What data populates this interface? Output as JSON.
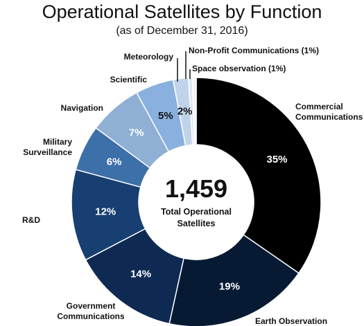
{
  "chart_data": {
    "type": "pie",
    "title": "Operational Satellites by Function",
    "subtitle": "(as of December 31, 2016)",
    "center_value": "1,459",
    "center_text_line1": "Total Operational",
    "center_text_line2": "Satellites",
    "categories": [
      "Commercial Communications",
      "Earth Observation",
      "Government Communications",
      "R&D",
      "Military Surveillance",
      "Navigation",
      "Scientific",
      "Meteorology",
      "Non-Profit Communications (1%)",
      "Space observation (1%)"
    ],
    "values": [
      35,
      19,
      14,
      12,
      6,
      7,
      5,
      2,
      0.5,
      0.5
    ],
    "value_labels": [
      "35%",
      "19%",
      "14%",
      "12%",
      "6%",
      "7%",
      "5%",
      "2%",
      "",
      ""
    ],
    "category_labels": [
      [
        "Commercial",
        "Communications"
      ],
      [
        "Earth Observation"
      ],
      [
        "Government",
        "Communications"
      ],
      [
        "R&D"
      ],
      [
        "Military",
        "Surveillance"
      ],
      [
        "Navigation"
      ],
      [
        "Scientific"
      ],
      [
        "Meteorology"
      ],
      [
        "Non-Profit Communications (1%)"
      ],
      [
        "Space observation (1%)"
      ]
    ],
    "colors": [
      "#000000",
      "#061a33",
      "#0e2a52",
      "#173f72",
      "#3d6fa9",
      "#8fafd4",
      "#8ab0df",
      "#bfd3ea",
      "#dce7f4",
      "#eef3f9"
    ],
    "label_colors": [
      "#ffffff",
      "#ffffff",
      "#ffffff",
      "#ffffff",
      "#ffffff",
      "#ffffff",
      "#111111",
      "#111111",
      "#111111",
      "#111111"
    ]
  }
}
